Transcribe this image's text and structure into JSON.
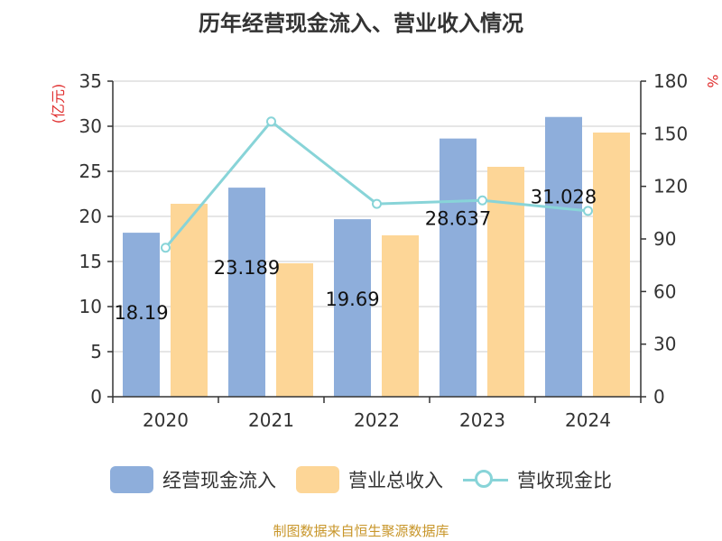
{
  "chart_data": {
    "type": "bar",
    "title": "历年经营现金流入、营业收入情况",
    "categories": [
      "2020",
      "2021",
      "2022",
      "2023",
      "2024"
    ],
    "series": [
      {
        "name": "经营现金流入",
        "axis": "left",
        "color": "#8eaedb",
        "values": [
          18.19,
          23.189,
          19.69,
          28.637,
          31.028
        ]
      },
      {
        "name": "营业总收入",
        "axis": "left",
        "color": "#fdd697",
        "values": [
          21.4,
          14.8,
          17.9,
          25.5,
          29.3
        ]
      },
      {
        "name": "营收现金比",
        "axis": "right",
        "type": "line",
        "color": "#88d4d8",
        "values": [
          85,
          157,
          110,
          112,
          106
        ]
      }
    ],
    "data_labels": [
      "18.19",
      "23.189",
      "19.69",
      "28.637",
      "31.028"
    ],
    "ylabel_left": "(亿元)",
    "ylabel_right": "%",
    "ylim_left": [
      0,
      35
    ],
    "yticks_left": [
      0,
      5,
      10,
      15,
      20,
      25,
      30,
      35
    ],
    "ylim_right": [
      0,
      180
    ],
    "yticks_right": [
      0,
      30,
      60,
      90,
      120,
      150,
      180
    ],
    "grid": true,
    "legend": "bottom"
  },
  "legend_labels": [
    "经营现金流入",
    "营业总收入",
    "营收现金比"
  ],
  "source": "制图数据来自恒生聚源数据库"
}
